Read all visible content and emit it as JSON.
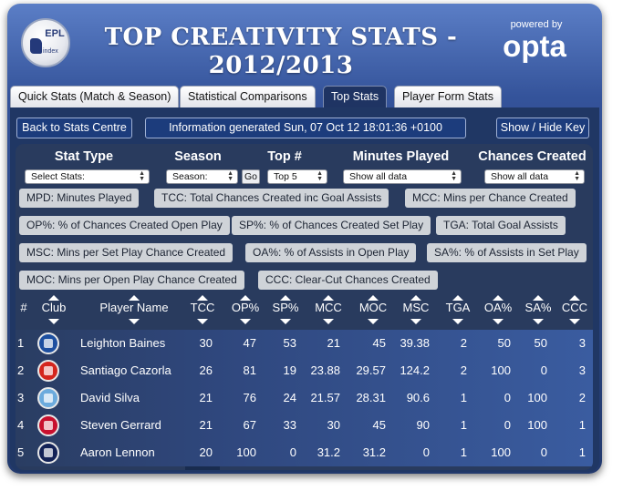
{
  "header": {
    "logo_text": "EPL",
    "logo_sub": "index",
    "title_line1": "TOP CREATIVITY STATS -",
    "title_line2": "2012/2013",
    "powered_by": "powered by",
    "opta": "opta"
  },
  "tabs": [
    {
      "label": "Quick Stats (Match & Season)",
      "active": false
    },
    {
      "label": "Statistical Comparisons",
      "active": false
    },
    {
      "label": "Top Stats",
      "active": true
    },
    {
      "label": "Player Form Stats",
      "active": false
    }
  ],
  "toolbar": {
    "back_label": "Back to Stats Centre",
    "info": "Information generated Sun, 07 Oct 12 18:01:36 +0100",
    "keys_label": "Show / Hide Key"
  },
  "controls": {
    "stat_type_label": "Stat Type",
    "stat_type_value": "Select Stats:",
    "season_label": "Season",
    "season_value": "Season:",
    "go_label": "Go",
    "top_label": "Top #",
    "top_value": "Top 5",
    "minutes_label": "Minutes Played",
    "minutes_value": "Show all data",
    "chances_label": "Chances Created",
    "chances_value": "Show all data"
  },
  "key_chips": [
    "MPD: Minutes Played",
    "TCC: Total Chances Created inc Goal Assists",
    "MCC: Mins per Chance Created",
    "OP%: % of Chances Created Open Play",
    "SP%: % of Chances Created Set Play",
    "TGA: Total Goal Assists",
    "MSC: Mins per Set Play Chance Created",
    "OA%: % of Assists in Open Play",
    "SA%: % of Assists in Set Play",
    "MOC: Mins per Open Play Chance Created",
    "CCC: Clear-Cut Chances Created"
  ],
  "table": {
    "headers": [
      "#",
      "Club",
      "Player Name",
      "TCC",
      "OP%",
      "SP%",
      "MCC",
      "MOC",
      "MSC",
      "TGA",
      "OA%",
      "SA%",
      "CCC"
    ],
    "rows": [
      {
        "rank": "1",
        "club_color": "#1d4fa0",
        "player": "Leighton Baines",
        "tcc": "30",
        "op": "47",
        "sp": "53",
        "mcc": "21",
        "moc": "45",
        "msc": "39.38",
        "tga": "2",
        "oa": "50",
        "sa": "50",
        "ccc": "3"
      },
      {
        "rank": "2",
        "club_color": "#d4261e",
        "player": "Santiago Cazorla",
        "tcc": "26",
        "op": "81",
        "sp": "19",
        "mcc": "23.88",
        "moc": "29.57",
        "msc": "124.2",
        "tga": "2",
        "oa": "100",
        "sa": "0",
        "ccc": "3"
      },
      {
        "rank": "3",
        "club_color": "#6cabdd",
        "player": "David Silva",
        "tcc": "21",
        "op": "76",
        "sp": "24",
        "mcc": "21.57",
        "moc": "28.31",
        "msc": "90.6",
        "tga": "1",
        "oa": "0",
        "sa": "100",
        "ccc": "2"
      },
      {
        "rank": "4",
        "club_color": "#c8102e",
        "player": "Steven Gerrard",
        "tcc": "21",
        "op": "67",
        "sp": "33",
        "mcc": "30",
        "moc": "45",
        "msc": "90",
        "tga": "1",
        "oa": "0",
        "sa": "100",
        "ccc": "1"
      },
      {
        "rank": "5",
        "club_color": "#132257",
        "player": "Aaron Lennon",
        "tcc": "20",
        "op": "100",
        "sp": "0",
        "mcc": "31.2",
        "moc": "31.2",
        "msc": "0",
        "tga": "1",
        "oa": "100",
        "sa": "0",
        "ccc": "1"
      }
    ]
  }
}
